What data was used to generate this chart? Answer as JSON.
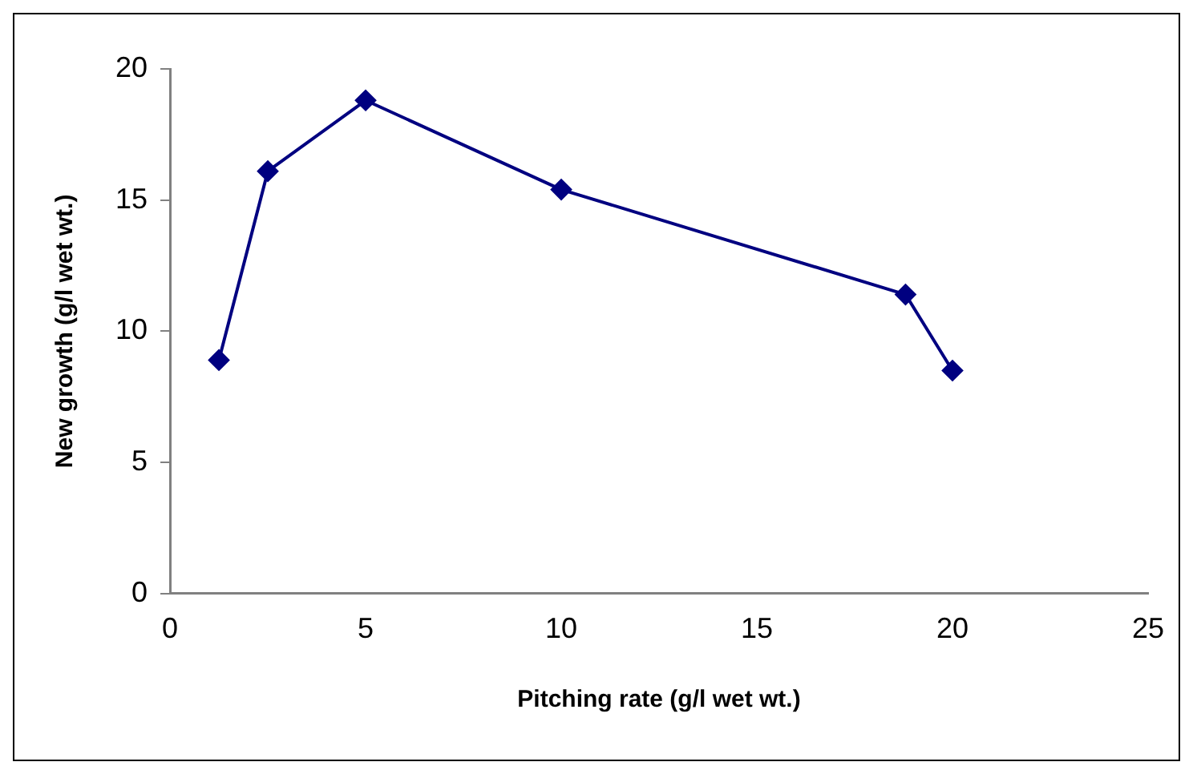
{
  "chart_data": {
    "type": "line",
    "xlabel": "Pitching rate (g/l wet wt.)",
    "ylabel": "New growth (g/l wet wt.)",
    "x": [
      1.25,
      2.5,
      5,
      10,
      18.8,
      20
    ],
    "series": [
      {
        "color": "#000080",
        "values": [
          8.9,
          16.1,
          18.8,
          15.4,
          11.4,
          8.5
        ]
      }
    ],
    "xlim": [
      0,
      25
    ],
    "xticks": [
      0,
      5,
      10,
      15,
      20,
      25
    ],
    "ylim": [
      0,
      20
    ],
    "yticks": [
      0,
      5,
      10,
      15,
      20
    ],
    "grid": false,
    "legend": false,
    "marker": "diamond",
    "line_style": "solid"
  }
}
